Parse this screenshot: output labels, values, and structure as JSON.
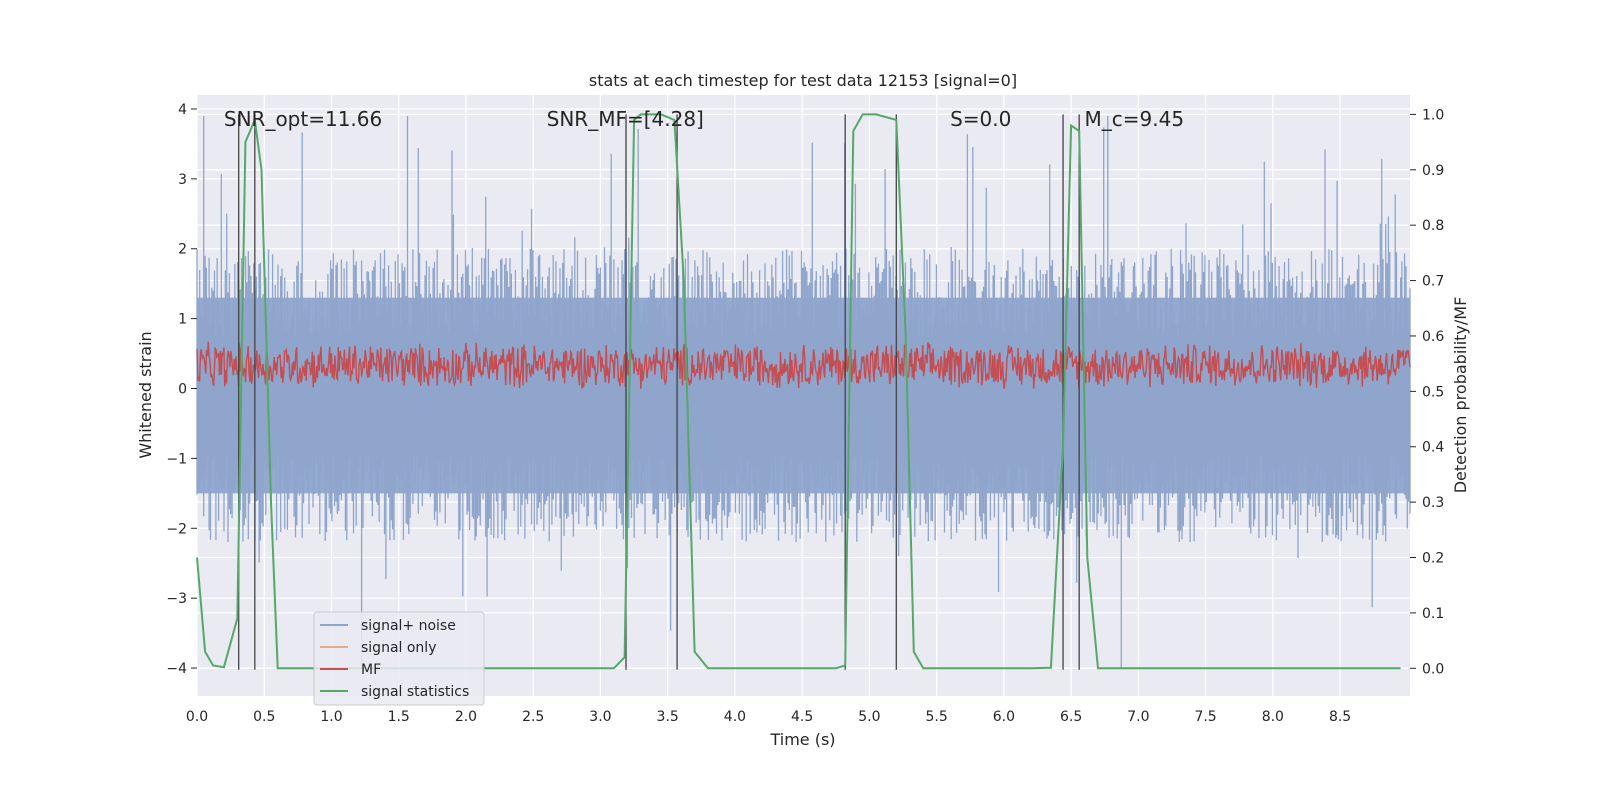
{
  "chart_data": {
    "type": "line",
    "title": "stats at each timestep for test data 12153 [signal=0]",
    "xlabel": "Time (s)",
    "ylabel_left": "Whitened strain",
    "ylabel_right": "Detection probability/MF",
    "xlim": [
      0,
      9.02
    ],
    "ylim_left": [
      -4.4,
      4.2
    ],
    "ylim_right": [
      -0.05,
      1.035
    ],
    "x_ticks": [
      "0.0",
      "0.5",
      "1.0",
      "1.5",
      "2.0",
      "2.5",
      "3.0",
      "3.5",
      "4.0",
      "4.5",
      "5.0",
      "5.5",
      "6.0",
      "6.5",
      "7.0",
      "7.5",
      "8.0",
      "8.5"
    ],
    "y_left_ticks": [
      "4",
      "3",
      "2",
      "1",
      "0",
      "−1",
      "−2",
      "−3",
      "−4"
    ],
    "y_right_ticks": [
      "1.0",
      "0.9",
      "0.8",
      "0.7",
      "0.6",
      "0.5",
      "0.4",
      "0.3",
      "0.2",
      "0.1",
      "0.0"
    ],
    "grid": true,
    "legend_position": "lower-left",
    "annotations": [
      {
        "text": "SNR_opt=11.66",
        "x": 0.2,
        "y": 3.9
      },
      {
        "text": "SNR_MF=[4.28]",
        "x": 2.6,
        "y": 3.9
      },
      {
        "text": "S=0.0",
        "x": 5.6,
        "y": 3.9
      },
      {
        "text": "M_c=9.45",
        "x": 6.6,
        "y": 3.9
      }
    ],
    "vlines": [
      0.31,
      0.43,
      3.19,
      3.57,
      4.82,
      5.2,
      6.44,
      6.56
    ],
    "noise_band": {
      "center": -0.1,
      "envelope": 1.4,
      "spike_max": 3.9,
      "spike_min": -4.0
    },
    "mf_band": {
      "center": 0.33,
      "amplitude": 0.35
    },
    "series": [
      {
        "name": "signal+ noise",
        "color": "#8fa5cc",
        "axis": "left"
      },
      {
        "name": "signal only",
        "color": "#e9a98d",
        "axis": "left"
      },
      {
        "name": "MF",
        "color": "#c44e52",
        "axis": "left"
      },
      {
        "name": "signal statistics",
        "color": "#55a868",
        "axis": "right",
        "x": [
          0.0,
          0.06,
          0.12,
          0.2,
          0.3,
          0.36,
          0.43,
          0.48,
          0.55,
          0.6,
          1.0,
          2.0,
          3.1,
          3.18,
          3.25,
          3.3,
          3.45,
          3.55,
          3.62,
          3.7,
          3.8,
          4.0,
          4.75,
          4.82,
          4.88,
          4.95,
          5.05,
          5.2,
          5.27,
          5.33,
          5.4,
          6.2,
          6.35,
          6.44,
          6.5,
          6.56,
          6.62,
          6.7,
          7.5,
          8.95
        ],
        "values": [
          0.2,
          0.03,
          0.005,
          0.002,
          0.09,
          0.95,
          0.99,
          0.9,
          0.3,
          0.0,
          0.0,
          0.0,
          0.0,
          0.02,
          0.99,
          1.0,
          1.0,
          0.99,
          0.7,
          0.03,
          0.0,
          0.0,
          0.0,
          0.005,
          0.97,
          1.0,
          1.0,
          0.99,
          0.6,
          0.03,
          0.0,
          0.0,
          0.001,
          0.4,
          0.98,
          0.97,
          0.2,
          0.0,
          0.0,
          0.0
        ]
      }
    ]
  }
}
